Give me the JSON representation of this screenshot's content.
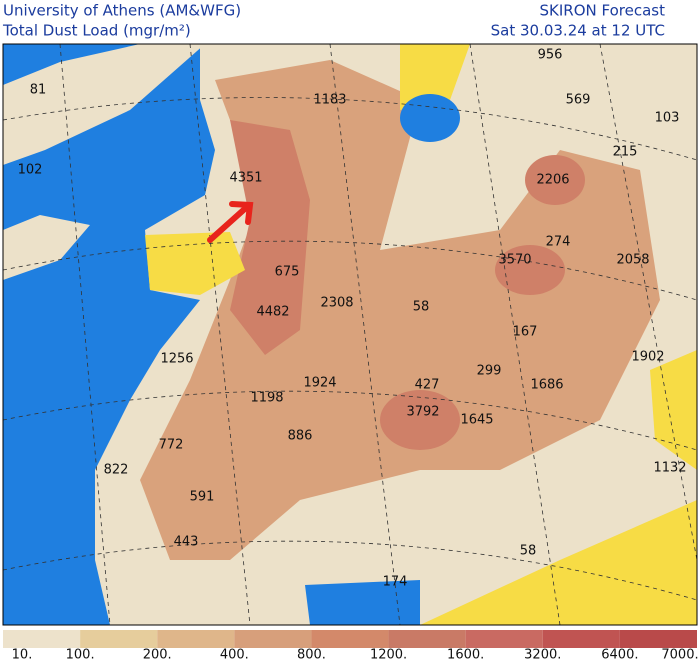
{
  "header": {
    "left_title": "University of Athens (AM&WFG)",
    "left_subtitle": "Total Dust Load (mgr/m²)",
    "right_title": "SKIRON Forecast",
    "right_subtitle": "Sat 30.03.24 at 12 UTC"
  },
  "map_labels": [
    81,
    102,
    1183,
    956,
    569,
    103,
    215,
    4351,
    2206,
    274,
    2058,
    3570,
    675,
    4482,
    2308,
    58,
    167,
    1902,
    1256,
    1924,
    299,
    427,
    1686,
    1198,
    3792,
    1645,
    886,
    772,
    822,
    1132,
    591,
    443,
    58,
    174
  ],
  "colorbar": {
    "labels": [
      "10.",
      "100.",
      "200.",
      "400.",
      "800.",
      "1200.",
      "1600.",
      "3200.",
      "6400.",
      "7000."
    ],
    "colors": [
      "#ede2cb",
      "#e6cd9c",
      "#dfb68a",
      "#d79f7b",
      "#d3896a",
      "#c97a66",
      "#c96a62",
      "#c05452",
      "#b94a4a"
    ]
  }
}
